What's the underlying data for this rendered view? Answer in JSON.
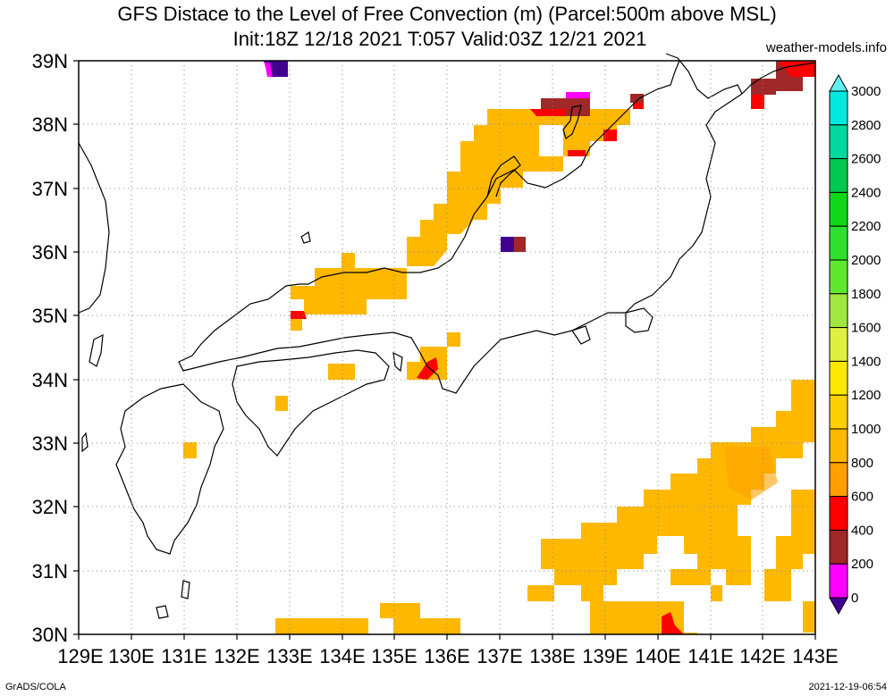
{
  "title_line1": "GFS Distace to the Level of Free Convection (m) (Parcel:500m above MSL)",
  "title_line2": "Init:18Z 12/18 2021 T:057 Valid:03Z 12/21 2021",
  "source": "weather-models.info",
  "footer_left": "GrADS/COLA",
  "footer_right": "2021-12-19-06:54",
  "map": {
    "lon_labels": [
      "129E",
      "130E",
      "131E",
      "132E",
      "133E",
      "134E",
      "135E",
      "136E",
      "137E",
      "138E",
      "139E",
      "140E",
      "141E",
      "142E",
      "143E"
    ],
    "lat_labels": [
      "39N",
      "38N",
      "37N",
      "36N",
      "35N",
      "34N",
      "33N",
      "32N",
      "31N",
      "30N"
    ]
  },
  "colorbar": {
    "labels": [
      "3000",
      "2800",
      "2600",
      "2400",
      "2200",
      "2000",
      "1800",
      "1600",
      "1400",
      "1200",
      "1000",
      "800",
      "600",
      "400",
      "200",
      "0"
    ],
    "colors": [
      "#00e8e0",
      "#00d8a0",
      "#00c850",
      "#10d818",
      "#30e030",
      "#60e830",
      "#a0e840",
      "#e0f040",
      "#ffe800",
      "#ffd000",
      "#ffb800",
      "#ffa000",
      "#ff0000",
      "#a02828",
      "#ff00ff",
      "#400090"
    ],
    "top_arrow_color": "#60f0f0",
    "bottom_arrow_color": "#400090"
  },
  "colors": {
    "orange_light": "#ffb800",
    "orange": "#ffa000",
    "red": "#ff0000",
    "brown": "#a02828",
    "magenta": "#ff00ff",
    "purple": "#400090"
  }
}
